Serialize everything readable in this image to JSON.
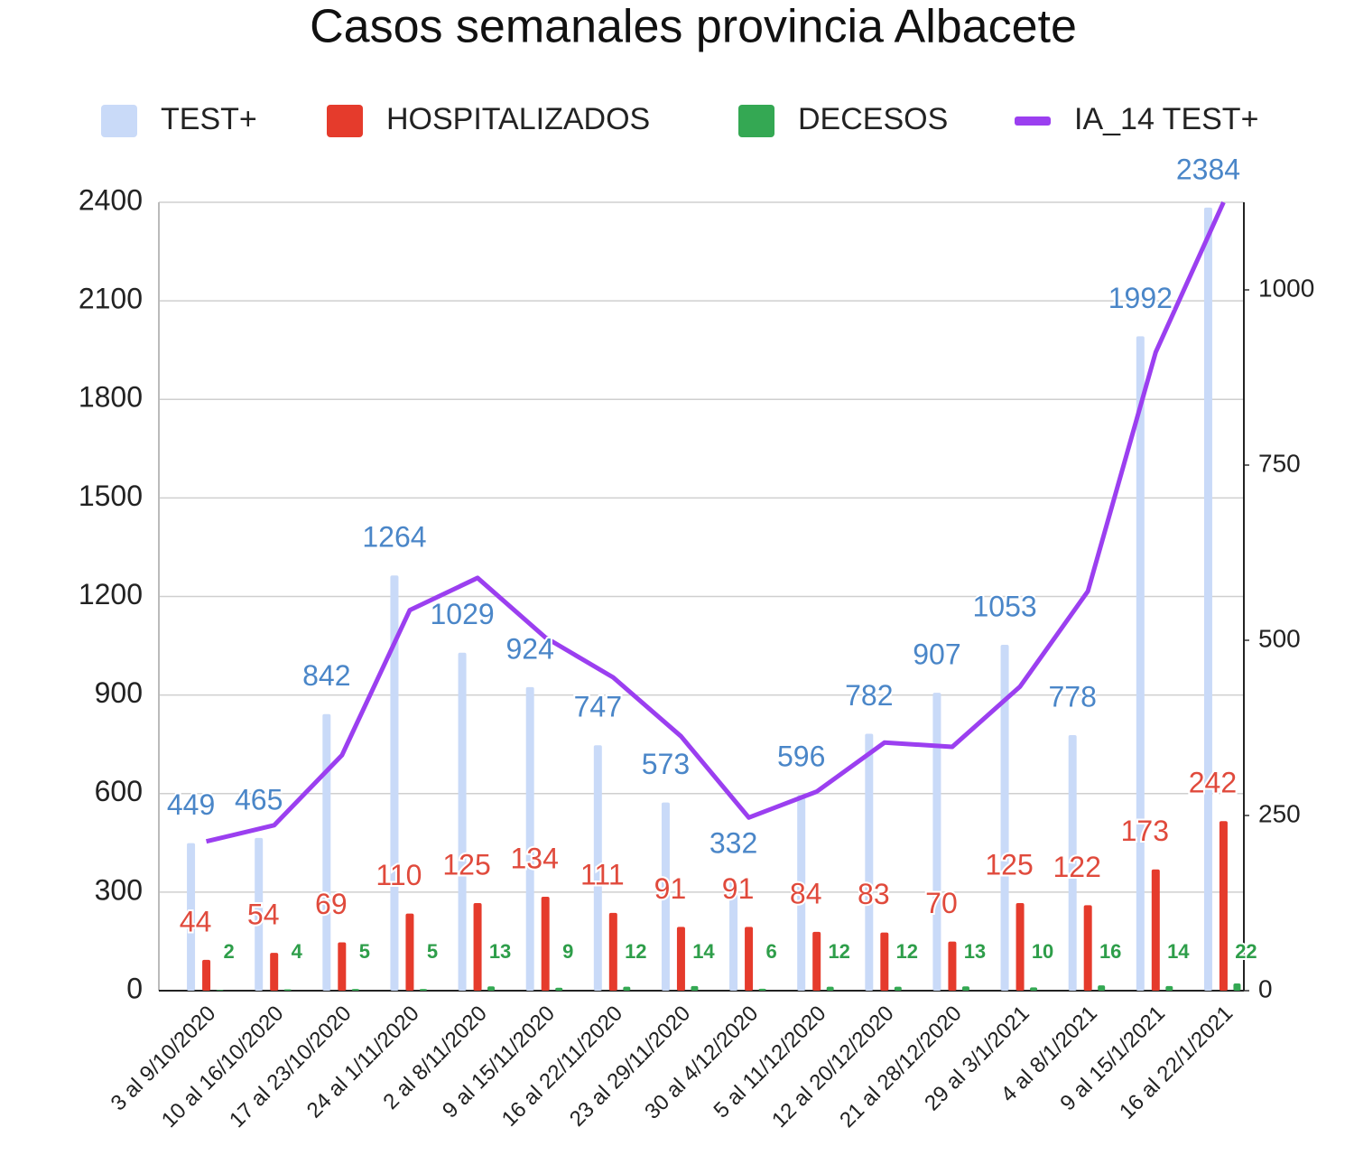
{
  "chart_data": {
    "type": "combo",
    "title": "Casos semanales provincia Albacete",
    "categories": [
      "3 al 9/10/2020",
      "10 al 16/10/2020",
      "17 al 23/10/2020",
      "24 al 1/11/2020",
      "2 al 8/11/2020",
      "9 al 15/11/2020",
      "16 al 22/11/2020",
      "23 al 29/11/2020",
      "30 al 4/12/2020",
      "5 al 11/12/2020",
      "12 al 20/12/2020",
      "21 al 28/12/2020",
      "29 al 3/1/2021",
      "4 al 8/1/2021",
      "9 al 15/1/2021",
      "16 al 22/1/2021"
    ],
    "series": [
      {
        "name": "TEST+",
        "kind": "bar",
        "color": "#c9daf8",
        "label_color": "#4a86c8",
        "values": [
          449,
          465,
          842,
          1264,
          1029,
          924,
          747,
          573,
          332,
          596,
          782,
          907,
          1053,
          778,
          1992,
          2384
        ]
      },
      {
        "name": "HOSPITALIZADOS",
        "kind": "bar",
        "axis": "y2",
        "color": "#e53b2c",
        "label_color": "#e04a3c",
        "values": [
          44,
          54,
          69,
          110,
          125,
          134,
          111,
          91,
          91,
          84,
          83,
          70,
          125,
          122,
          173,
          242
        ]
      },
      {
        "name": "DECESOS",
        "kind": "bar",
        "color": "#34a853",
        "label_color": "#2e9e4a",
        "values": [
          2,
          4,
          5,
          5,
          13,
          9,
          12,
          14,
          6,
          12,
          12,
          13,
          10,
          16,
          14,
          22
        ]
      },
      {
        "name": "IA_14 TEST+",
        "kind": "line",
        "axis": "y2",
        "color": "#9b3ff0",
        "values": [
          213,
          236,
          336,
          543,
          589,
          504,
          447,
          363,
          247,
          284,
          354,
          348,
          434,
          570,
          911,
          1125
        ]
      }
    ],
    "ylim": [
      0,
      2400
    ],
    "yticks": [
      0,
      300,
      600,
      900,
      1200,
      1500,
      1800,
      2100,
      2400
    ],
    "y2lim": [
      0,
      1125
    ],
    "y2ticks": [
      0,
      250,
      500,
      750,
      1000
    ],
    "grid": true
  }
}
